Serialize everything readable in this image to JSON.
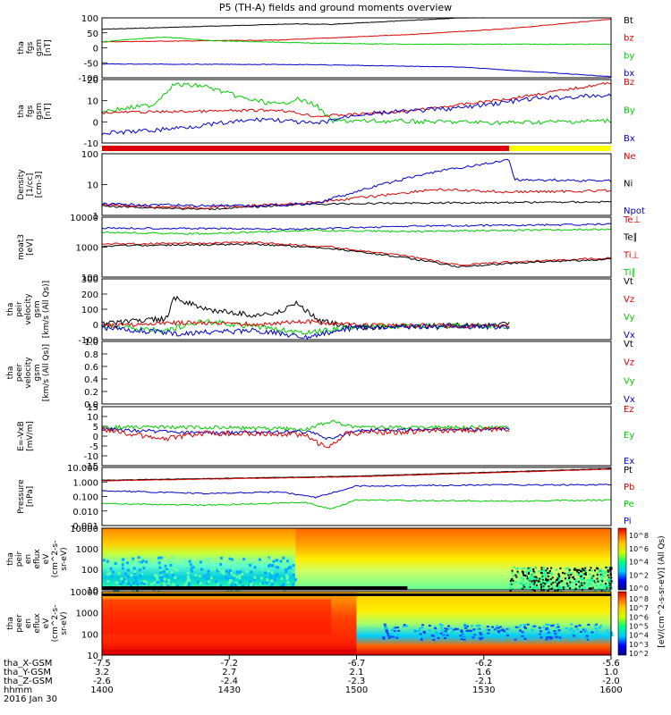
{
  "title": "P5 (TH-A) fields and ground moments overview",
  "panels": [
    {
      "name": "fgs-gsm-nT",
      "ylabel": [
        "tha",
        "fgs",
        "gsm",
        "[nT]"
      ],
      "ylim": [
        -100,
        100
      ],
      "yticks": [
        "100",
        "50",
        "0",
        "-50",
        "-100"
      ],
      "legend": [
        {
          "label": "Bt",
          "color": "#000000"
        },
        {
          "label": "bz",
          "color": "#dd0000"
        },
        {
          "label": "by",
          "color": "#00cc00"
        },
        {
          "label": "bx",
          "color": "#0000cc"
        }
      ]
    },
    {
      "name": "fgs-gsm-nT-zoom",
      "ylabel": [
        "tha",
        "fgs",
        "gsm",
        "[nT]"
      ],
      "ylim": [
        -13,
        20
      ],
      "yticks": [
        "20",
        "10",
        "0",
        "-10"
      ],
      "legend": [
        {
          "label": "Bz",
          "color": "#dd0000"
        },
        {
          "label": "By",
          "color": "#00cc00"
        },
        {
          "label": "Bx",
          "color": "#0000cc"
        }
      ]
    },
    {
      "name": "density",
      "ylabel": [
        "Density",
        "[1/cc]",
        "[cm-3]"
      ],
      "log": true,
      "yticks": [
        "100",
        "10",
        "1"
      ],
      "legend": [
        {
          "label": "Ne",
          "color": "#dd0000"
        },
        {
          "label": "Ni",
          "color": "#000000"
        },
        {
          "label": "Npot",
          "color": "#0000cc"
        }
      ]
    },
    {
      "name": "temperature",
      "ylabel": [
        "moat3",
        "[eV]"
      ],
      "log": true,
      "yticks": [
        "10000",
        "1000",
        "100"
      ],
      "legend": [
        {
          "label": "Te⊥",
          "color": "#dd0000"
        },
        {
          "label": "Te∥",
          "color": "#000000"
        },
        {
          "label": "Ti⊥",
          "color": "#dd0000"
        },
        {
          "label": "Ti∥",
          "color": "#00cc00"
        }
      ]
    },
    {
      "name": "ion-velocity",
      "ylabel": [
        "tha",
        "peir",
        "velocity",
        "gsm",
        "[km/s (All Qs)]"
      ],
      "ylim": [
        -100,
        300
      ],
      "yticks": [
        "300",
        "200",
        "100",
        "0",
        "-100"
      ],
      "legend": [
        {
          "label": "Vt",
          "color": "#000000"
        },
        {
          "label": "Vz",
          "color": "#dd0000"
        },
        {
          "label": "Vy",
          "color": "#00cc00"
        },
        {
          "label": "Vx",
          "color": "#0000cc"
        }
      ]
    },
    {
      "name": "electron-velocity",
      "ylabel": [
        "tha",
        "peer",
        "velocity",
        "gsm",
        "[km/s (All Qs)]"
      ],
      "ylim": [
        0,
        1
      ],
      "yticks": [
        "1.0",
        "0.8",
        "0.6",
        "0.4",
        "0.2",
        "0.0"
      ],
      "legend": [
        {
          "label": "Vt",
          "color": "#000000"
        },
        {
          "label": "Vz",
          "color": "#dd0000"
        },
        {
          "label": "Vy",
          "color": "#00cc00"
        },
        {
          "label": "Vx",
          "color": "#0000cc"
        }
      ]
    },
    {
      "name": "efield",
      "ylabel": [
        "E=-VxB",
        "[mV/m]"
      ],
      "ylim": [
        -20,
        15
      ],
      "yticks": [
        "15",
        "10",
        "5",
        "0",
        "-5",
        "-10",
        "-15"
      ],
      "legend": [
        {
          "label": "Ez",
          "color": "#dd0000"
        },
        {
          "label": "Ey",
          "color": "#00cc00"
        },
        {
          "label": "Ex",
          "color": "#0000cc"
        }
      ]
    },
    {
      "name": "pressure",
      "ylabel": [
        "Pressure",
        "[nPa]"
      ],
      "log": true,
      "yticks": [
        "10.000",
        "1.000",
        "0.100",
        "0.010",
        "0.001"
      ],
      "legend": [
        {
          "label": "Pt",
          "color": "#000000"
        },
        {
          "label": "Pb",
          "color": "#dd0000"
        },
        {
          "label": "Pe",
          "color": "#00cc00"
        },
        {
          "label": "Pi",
          "color": "#0000cc"
        }
      ]
    },
    {
      "name": "ion-spectrogram",
      "ylabel": [
        "tha",
        "peir",
        "en",
        "eflux",
        "eV",
        "(cm^2-s-",
        "sr-eV)"
      ],
      "log": true,
      "yticks": [
        "10000",
        "1000",
        "100",
        "10"
      ]
    },
    {
      "name": "electron-spectrogram",
      "ylabel": [
        "tha",
        "peer",
        "en",
        "eflux",
        "eV",
        "(cm^2-s-",
        "sr-eV)"
      ],
      "log": true,
      "yticks": [
        "10000",
        "1000",
        "100",
        "10"
      ]
    }
  ],
  "colorbar": {
    "label": "[eV/(cm^2-s-sr-eV)] (All Qs)",
    "ion_ticks": [
      "10^8",
      "10^6",
      "10^4",
      "10^2",
      "10^0"
    ],
    "electron_ticks": [
      "10^8",
      "10^7",
      "10^6",
      "10^5",
      "10^4",
      "10^3",
      "10^2"
    ]
  },
  "xaxis": {
    "row_labels": [
      "tha_X-GSM",
      "tha_Y-GSM",
      "tha_Z-GSM",
      "hhmm",
      "2016 Jan 30"
    ],
    "ticks": [
      {
        "x": "-7.5",
        "y": "3.2",
        "z": "-2.6",
        "t": "1400"
      },
      {
        "x": "-7.2",
        "y": "2.7",
        "z": "-2.4",
        "t": "1430"
      },
      {
        "x": "-6.7",
        "y": "2.1",
        "z": "-2.3",
        "t": "1500"
      },
      {
        "x": "-6.2",
        "y": "1.6",
        "z": "-2.1",
        "t": "1530"
      },
      {
        "x": "-5.6",
        "y": "1.0",
        "z": "-2.0",
        "t": "1600"
      }
    ]
  },
  "colors": {
    "red": "#dd0000",
    "green": "#00cc00",
    "blue": "#0000cc",
    "black": "#000000",
    "yellow": "#ffff00"
  },
  "chart_data": {
    "type": "line",
    "title": "P5 (TH-A) fields and ground moments overview",
    "x_time_hhmm": [
      "1400",
      "1430",
      "1500",
      "1530",
      "1600"
    ],
    "series": [
      {
        "name": "Bt",
        "panel": 1,
        "values": [
          62,
          65,
          80,
          100,
          115
        ]
      },
      {
        "name": "bz",
        "panel": 1,
        "values": [
          18,
          22,
          38,
          60,
          95
        ]
      },
      {
        "name": "by",
        "panel": 1,
        "values": [
          18,
          35,
          15,
          14,
          14
        ]
      },
      {
        "name": "bx",
        "panel": 1,
        "values": [
          -55,
          -56,
          -60,
          -72,
          -100
        ]
      },
      {
        "name": "Bz",
        "panel": 2,
        "values": [
          3,
          5,
          1,
          10,
          18
        ]
      },
      {
        "name": "By",
        "panel": 2,
        "values": [
          0,
          18,
          -5,
          -7,
          -5
        ]
      },
      {
        "name": "Bx",
        "panel": 2,
        "values": [
          -10,
          -1,
          3,
          6,
          12
        ]
      },
      {
        "name": "Ne",
        "panel": 3,
        "values": [
          0.4,
          0.5,
          3,
          2,
          3
        ]
      },
      {
        "name": "Ni",
        "panel": 3,
        "values": [
          0.4,
          0.5,
          0.8,
          0.6,
          0.8
        ]
      },
      {
        "name": "Npot",
        "panel": 3,
        "values": [
          0.5,
          0.5,
          20,
          200,
          10
        ]
      },
      {
        "name": "Ti∥",
        "panel": 4,
        "values": [
          2000,
          2500,
          3500,
          3200,
          3500
        ]
      },
      {
        "name": "Ti⊥",
        "panel": 4,
        "values": [
          400,
          600,
          150,
          60,
          100
        ]
      },
      {
        "name": "Te∥",
        "panel": 4,
        "values": [
          4000,
          4500,
          5000,
          5500,
          6000
        ]
      },
      {
        "name": "Pt",
        "panel": 8,
        "values": [
          1.0,
          1.5,
          3,
          5,
          8
        ]
      },
      {
        "name": "Pi",
        "panel": 8,
        "values": [
          0.2,
          0.15,
          0.5,
          0.5,
          0.5
        ]
      },
      {
        "name": "Pe",
        "panel": 8,
        "values": [
          0.02,
          0.03,
          0.03,
          0.02,
          0.02
        ]
      }
    ],
    "color_bar": [
      {
        "label": "red",
        "start": "1400",
        "end": "1536"
      },
      {
        "label": "yellow",
        "start": "1536",
        "end": "1600"
      }
    ]
  }
}
